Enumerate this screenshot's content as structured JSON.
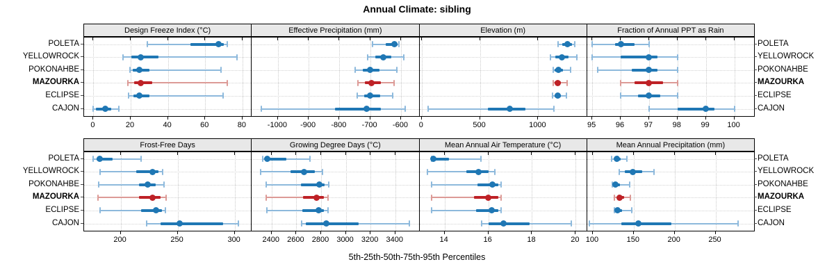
{
  "title": "Annual Climate: sibling",
  "caption": "5th-25th-50th-75th-95th Percentiles",
  "sites": [
    "POLETA",
    "YELLOWROCK",
    "POKONAHBE",
    "MAZOURKA",
    "ECLIPSE",
    "CAJON"
  ],
  "highlight_site": "MAZOURKA",
  "percentile_labels": [
    "5th",
    "25th",
    "50th",
    "75th",
    "95th"
  ],
  "colors": {
    "blue": "#1f77b4",
    "blue_light": "#8db9dc",
    "red": "#be2126",
    "red_light": "#dc9a96",
    "strip_bg": "#e8e8e8",
    "grid": "#c9c9c9",
    "border": "#000000"
  },
  "chart_data": {
    "type": "dotplot-percentile-intervals",
    "note": "each series value array is [p5, p25, p50, p75, p95]",
    "layout": {
      "rows": 2,
      "cols": 4
    },
    "panels": [
      {
        "title": "Design Freeze Index (°C)",
        "row": 0,
        "col": 0,
        "ticks": [
          0,
          20,
          40,
          60,
          80
        ],
        "xlim": [
          -5,
          85
        ],
        "series": [
          {
            "site": "POLETA",
            "p": [
              29,
              52,
              67,
              70,
              72
            ]
          },
          {
            "site": "YELLOWROCK",
            "p": [
              16,
              20.5,
              25.5,
              35,
              77
            ]
          },
          {
            "site": "POKONAHBE",
            "p": [
              19.5,
              21,
              24.5,
              30,
              68.5
            ]
          },
          {
            "site": "MAZOURKA",
            "p": [
              18.5,
              22,
              25.5,
              31.5,
              72
            ]
          },
          {
            "site": "ECLIPSE",
            "p": [
              19,
              21.5,
              24.5,
              30,
              69.5
            ]
          },
          {
            "site": "CAJON",
            "p": [
              0,
              1.5,
              6.5,
              9.5,
              13.5
            ]
          }
        ]
      },
      {
        "title": "Effective Precipitation (mm)",
        "row": 0,
        "col": 1,
        "ticks": [
          -1000,
          -900,
          -800,
          -700,
          -600
        ],
        "xlim": [
          -1085,
          -540
        ],
        "series": [
          {
            "site": "POLETA",
            "p": [
              -693,
              -650,
              -622,
              -612,
              -607
            ]
          },
          {
            "site": "YELLOWROCK",
            "p": [
              -708,
              -684,
              -658,
              -631,
              -590
            ]
          },
          {
            "site": "POKONAHBE",
            "p": [
              -748,
              -724,
              -701,
              -669,
              -614
            ]
          },
          {
            "site": "MAZOURKA",
            "p": [
              -740,
              -718,
              -697,
              -665,
              -622
            ]
          },
          {
            "site": "ECLIPSE",
            "p": [
              -742,
              -720,
              -701,
              -668,
              -626
            ]
          },
          {
            "site": "CAJON",
            "p": [
              -1055,
              -815,
              -712,
              -665,
              -586
            ]
          }
        ]
      },
      {
        "title": "Elevation (m)",
        "row": 0,
        "col": 2,
        "ticks": [
          0,
          500,
          1000
        ],
        "xlim": [
          -20,
          1420
        ],
        "series": [
          {
            "site": "POLETA",
            "p": [
              1173,
              1209,
              1253,
              1289,
              1313
            ]
          },
          {
            "site": "YELLOWROCK",
            "p": [
              1108,
              1149,
              1203,
              1259,
              1333
            ]
          },
          {
            "site": "POKONAHBE",
            "p": [
              1129,
              1142,
              1173,
              1212,
              1279
            ]
          },
          {
            "site": "MAZOURKA",
            "p": [
              1129,
              1142,
              1169,
              1196,
              1249
            ]
          },
          {
            "site": "ECLIPSE",
            "p": [
              1125,
              1140,
              1169,
              1194,
              1245
            ]
          },
          {
            "site": "CAJON",
            "p": [
              55,
              570,
              755,
              890,
              1135
            ]
          }
        ]
      },
      {
        "title": "Fraction of Annual PPT as Rain",
        "row": 0,
        "col": 3,
        "ticks": [
          95,
          96,
          97,
          98,
          99,
          100
        ],
        "xlim": [
          94.82,
          100.72
        ],
        "series": [
          {
            "site": "POLETA",
            "p": [
              95,
              95.8,
              96,
              96.5,
              97
            ]
          },
          {
            "site": "YELLOWROCK",
            "p": [
              95,
              96,
              97,
              97.3,
              98
            ]
          },
          {
            "site": "POKONAHBE",
            "p": [
              95.2,
              96.4,
              97,
              97.3,
              98
            ]
          },
          {
            "site": "MAZOURKA",
            "p": [
              96,
              96.5,
              97,
              97.5,
              98
            ]
          },
          {
            "site": "ECLIPSE",
            "p": [
              96,
              96.6,
              97,
              97.4,
              98
            ]
          },
          {
            "site": "CAJON",
            "p": [
              97,
              98,
              99,
              99.3,
              100
            ]
          }
        ]
      },
      {
        "title": "Frost-Free Days",
        "row": 1,
        "col": 0,
        "ticks": [
          200,
          250,
          300
        ],
        "xlim": [
          168,
          315
        ],
        "series": [
          {
            "site": "POLETA",
            "p": [
              176,
              179,
              182,
              193,
              218
            ]
          },
          {
            "site": "YELLOWROCK",
            "p": [
              182,
              214,
              228,
              233,
              237
            ]
          },
          {
            "site": "POKONAHBE",
            "p": [
              181,
              216,
              224,
              231,
              238
            ]
          },
          {
            "site": "MAZOURKA",
            "p": [
              180,
              216,
              228,
              235,
              240
            ]
          },
          {
            "site": "ECLIPSE",
            "p": [
              182,
              218,
              231,
              236,
              239
            ]
          },
          {
            "site": "CAJON",
            "p": [
              223,
              235,
              252,
              290,
              303
            ]
          }
        ]
      },
      {
        "title": "Growing Degree Days (°C)",
        "row": 1,
        "col": 1,
        "ticks": [
          2400,
          2600,
          2800,
          3000,
          3200,
          3400
        ],
        "xlim": [
          2240,
          3595
        ],
        "series": [
          {
            "site": "POLETA",
            "p": [
              2330,
              2350,
              2367,
              2520,
              2710
            ]
          },
          {
            "site": "YELLOWROCK",
            "p": [
              2311,
              2552,
              2663,
              2748,
              2811
            ]
          },
          {
            "site": "POKONAHBE",
            "p": [
              2354,
              2637,
              2789,
              2830,
              2863
            ]
          },
          {
            "site": "MAZOURKA",
            "p": [
              2354,
              2656,
              2765,
              2822,
              2857
            ]
          },
          {
            "site": "ECLIPSE",
            "p": [
              2363,
              2650,
              2783,
              2825,
              2857
            ]
          },
          {
            "site": "CAJON",
            "p": [
              2641,
              2678,
              2841,
              3104,
              3511
            ]
          }
        ]
      },
      {
        "title": "Mean Annual Air Temperature (°C)",
        "row": 1,
        "col": 2,
        "ticks": [
          14,
          16,
          18,
          20
        ],
        "xlim": [
          12.85,
          20.52
        ],
        "series": [
          {
            "site": "POLETA",
            "p": [
              13.4,
              13.45,
              13.5,
              14.2,
              15.65
            ]
          },
          {
            "site": "YELLOWROCK",
            "p": [
              13.2,
              15.0,
              15.55,
              16.0,
              16.3
            ]
          },
          {
            "site": "POKONAHBE",
            "p": [
              13.4,
              15.5,
              16.2,
              16.45,
              16.6
            ]
          },
          {
            "site": "MAZOURKA",
            "p": [
              13.4,
              15.35,
              16.0,
              16.45,
              16.6
            ]
          },
          {
            "site": "ECLIPSE",
            "p": [
              13.4,
              15.45,
              16.15,
              16.45,
              16.6
            ]
          },
          {
            "site": "CAJON",
            "p": [
              15.7,
              16.0,
              16.7,
              17.9,
              19.8
            ]
          }
        ]
      },
      {
        "title": "Mean Annual Precipitation (mm)",
        "row": 1,
        "col": 3,
        "ticks": [
          100,
          150,
          200,
          250
        ],
        "xlim": [
          93,
          298
        ],
        "series": [
          {
            "site": "POLETA",
            "p": [
              123,
              126,
              129,
              134,
              142
            ]
          },
          {
            "site": "YELLOWROCK",
            "p": [
              132,
              139,
              149,
              160,
              175
            ]
          },
          {
            "site": "POKONAHBE",
            "p": [
              124,
              126,
              128,
              133,
              145
            ]
          },
          {
            "site": "MAZOURKA",
            "p": [
              126,
              130,
              133,
              138,
              146
            ]
          },
          {
            "site": "ECLIPSE",
            "p": [
              126,
              128,
              130,
              136,
              148
            ]
          },
          {
            "site": "CAJON",
            "p": [
              96,
              135,
              156,
              196,
              278
            ]
          }
        ]
      }
    ]
  }
}
